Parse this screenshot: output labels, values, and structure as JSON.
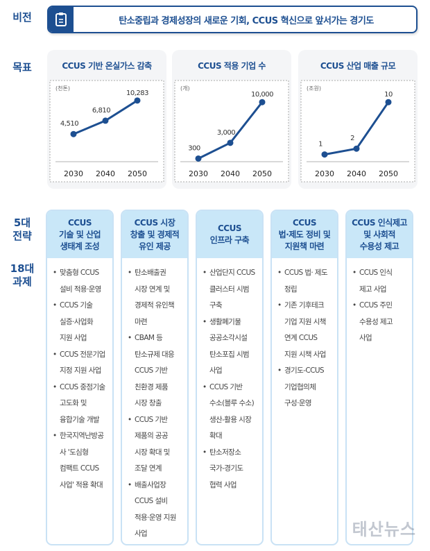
{
  "labels": {
    "vision": "비전",
    "goal": "목표",
    "strategy": "5대\n전략",
    "tasks": "18대\n과제"
  },
  "vision": {
    "icon": "clipboard-icon",
    "text": "탄소중립과 경제성장의 새로운 기회, CCUS 혁신으로 앞서가는 경기도"
  },
  "colors": {
    "primary": "#1d4f91",
    "header": "#c9e7f8",
    "border": "#c9e2f5"
  },
  "chart_data": [
    {
      "type": "line",
      "title": "CCUS 기반 온실가스 감축",
      "unit": "(천톤)",
      "categories": [
        "2030",
        "2040",
        "2050"
      ],
      "values": [
        4510,
        6810,
        10283
      ],
      "labels": [
        "4,510",
        "6,810",
        "10,283"
      ],
      "ylim": [
        0,
        10500
      ]
    },
    {
      "type": "line",
      "title": "CCUS 적용 기업 수",
      "unit": "(개)",
      "categories": [
        "2030",
        "2040",
        "2050"
      ],
      "values": [
        300,
        3000,
        10000
      ],
      "labels": [
        "300",
        "3,000",
        "10,000"
      ],
      "ylim": [
        0,
        10500
      ]
    },
    {
      "type": "line",
      "title": "CCUS 산업 매출 규모",
      "unit": "(조원)",
      "categories": [
        "2030",
        "2040",
        "2050"
      ],
      "values": [
        1,
        2,
        10
      ],
      "labels": [
        "1",
        "2",
        "10"
      ],
      "ylim": [
        0,
        10.5
      ]
    }
  ],
  "strategies": [
    {
      "title": "CCUS\n기술 및 산업\n생태계 조성",
      "tasks": [
        "맞춤형 CCUS\n설비 적용·운영",
        "CCUS 기술\n실증·사업화\n지원 사업",
        "CCUS 전문기업\n지정 지원 사업",
        "CCUS 중점기술\n고도화 및\n융합기술 개발",
        "한국지역난방공\n사 '도심형\n컴팩트 CCUS\n사업' 적용 확대"
      ]
    },
    {
      "title": "CCUS 시장\n창출 및 경제적\n유인 제공",
      "tasks": [
        "탄소배출권\n시장 연계 및\n경제적 유인책\n마련",
        "CBAM 등\n탄소규제 대응\nCCUS 기반\n친환경 제품\n시장 창출",
        "CCUS 기반\n제품의 공공\n시장 확대 및\n조달 연계",
        "배출사업장\nCCUS 설비\n적용·운영 지원\n사업"
      ]
    },
    {
      "title": "CCUS\n인프라 구축",
      "tasks": [
        "산업단지 CCUS\n클러스터 시범\n구축",
        "생활폐기물\n공공소각시설\n탄소포집 시범\n사업",
        "CCUS 기반\n수소(블루 수소)\n생산-활용 시장\n확대",
        "탄소저장소\n국가-경기도\n협력 사업"
      ]
    },
    {
      "title": "CCUS\n법·제도 정비 및\n지원책 마련",
      "tasks": [
        "CCUS 법· 제도\n정립",
        "기존 기후테크\n기업 지원 시책\n연계 CCUS\n지원 시책 사업",
        "경기도-CCUS\n기업협의체\n구성·운영"
      ]
    },
    {
      "title": "CCUS 인식제고\n및 사회적\n수용성 제고",
      "tasks": [
        "CCUS 인식\n제고 사업",
        "CCUS 주민\n수용성 제고\n사업"
      ]
    }
  ],
  "watermark": "태산뉴스"
}
